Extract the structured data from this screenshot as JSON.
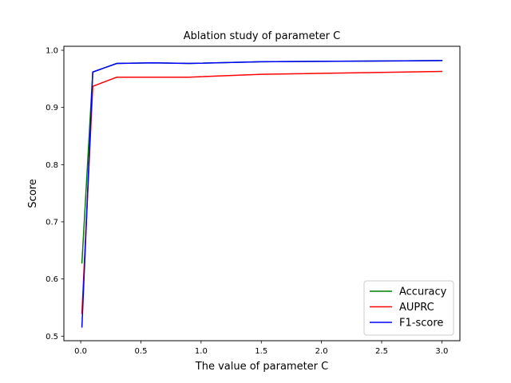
{
  "chart_data": {
    "type": "line",
    "title": "Ablation study of parameter C",
    "xlabel": "The value of parameter C",
    "ylabel": "Score",
    "xlim": [
      -0.14,
      3.15
    ],
    "ylim": [
      0.492,
      1.007
    ],
    "xticks": [
      0.0,
      0.5,
      1.0,
      1.5,
      2.0,
      2.5,
      3.0
    ],
    "xtick_labels": [
      "0.0",
      "0.5",
      "1.0",
      "1.5",
      "2.0",
      "2.5",
      "3.0"
    ],
    "yticks": [
      0.5,
      0.6,
      0.7,
      0.8,
      0.9,
      1.0
    ],
    "ytick_labels": [
      "0.5",
      "0.6",
      "0.7",
      "0.8",
      "0.9",
      "1.0"
    ],
    "grid": false,
    "legend_position": "bottom-right",
    "series": [
      {
        "name": "Accuracy",
        "color": "#008000",
        "x": [
          0.01,
          0.1,
          0.3,
          0.6,
          0.9,
          1.5,
          3.0
        ],
        "y": [
          0.628,
          0.962,
          0.977,
          0.978,
          0.977,
          0.98,
          0.982
        ]
      },
      {
        "name": "AUPRC",
        "color": "#ff0000",
        "x": [
          0.01,
          0.1,
          0.3,
          0.6,
          0.9,
          1.5,
          3.0
        ],
        "y": [
          0.54,
          0.937,
          0.953,
          0.953,
          0.953,
          0.958,
          0.963
        ]
      },
      {
        "name": "F1-score",
        "color": "#0000ff",
        "x": [
          0.01,
          0.1,
          0.3,
          0.6,
          0.9,
          1.5,
          3.0
        ],
        "y": [
          0.516,
          0.962,
          0.977,
          0.978,
          0.977,
          0.98,
          0.982
        ]
      }
    ]
  }
}
